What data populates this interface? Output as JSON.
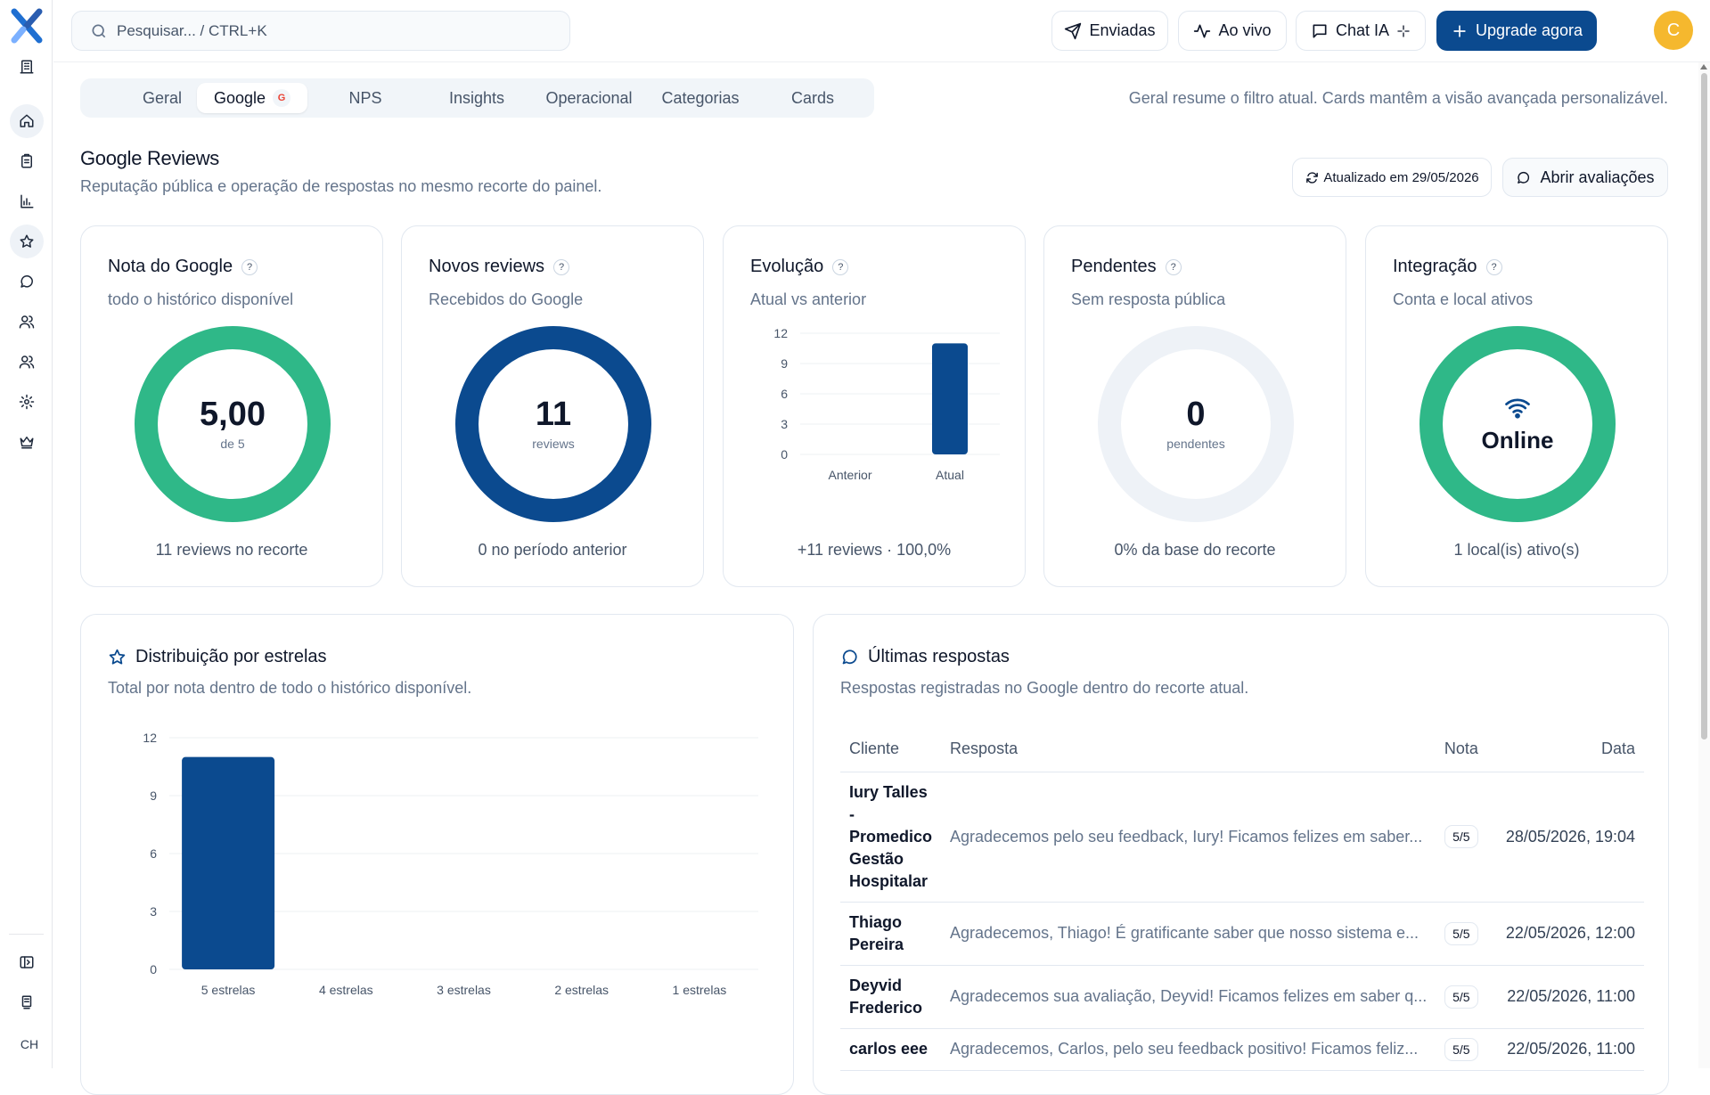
{
  "header": {
    "search_placeholder": "Pesquisar... / CTRL+K",
    "buttons": {
      "sent": "Enviadas",
      "live": "Ao vivo",
      "chat": "Chat IA",
      "upgrade": "Upgrade agora"
    },
    "avatar_initial": "C"
  },
  "sidebar": {
    "avatar_initials": "CH"
  },
  "tabs": {
    "items": [
      "Geral",
      "Google",
      "NPS",
      "Insights",
      "Operacional",
      "Categorias",
      "Cards"
    ],
    "active": "Google",
    "google_badge": "G",
    "hint": "Geral resume o filtro atual. Cards mantêm a visão avançada personalizável."
  },
  "section": {
    "title": "Google Reviews",
    "subtitle": "Reputação pública e operação de respostas no mesmo recorte do painel.",
    "updated_label": "Atualizado em 29/05/2026",
    "open_label": "Abrir avaliações"
  },
  "kpis": {
    "rating": {
      "title": "Nota do Google",
      "help": "?",
      "subtitle": "todo o histórico disponível",
      "value": "5,00",
      "unit": "de 5",
      "fill": 1.0,
      "footer": "11 reviews no recorte",
      "color": "#2fb888"
    },
    "new_reviews": {
      "title": "Novos reviews",
      "help": "?",
      "subtitle": "Recebidos do Google",
      "value": "11",
      "unit": "reviews",
      "fill": 1.0,
      "footer": "0 no período anterior",
      "color": "#0b4a8f"
    },
    "evolution": {
      "title": "Evolução",
      "help": "?",
      "subtitle": "Atual vs anterior",
      "footer": "+11 reviews · 100,0%"
    },
    "pending": {
      "title": "Pendentes",
      "help": "?",
      "subtitle": "Sem resposta pública",
      "value": "0",
      "unit": "pendentes",
      "fill": 0.0,
      "footer": "0% da base do recorte",
      "color": "#eef2f7"
    },
    "integration": {
      "title": "Integração",
      "help": "?",
      "subtitle": "Conta e local ativos",
      "value": "Online",
      "fill": 1.0,
      "footer": "1 local(is) ativo(s)",
      "color": "#2fb888"
    }
  },
  "distribution": {
    "title": "Distribuição por estrelas",
    "subtitle": "Total por nota dentro de todo o histórico disponível."
  },
  "latest": {
    "title": "Últimas respostas",
    "subtitle": "Respostas registradas no Google dentro do recorte atual.",
    "columns": {
      "client": "Cliente",
      "response": "Resposta",
      "rating": "Nota",
      "date": "Data"
    },
    "rows": [
      {
        "client": "Iury Talles - Promedico Gestão Hospitalar",
        "response": "Agradecemos pelo seu feedback, Iury! Ficamos felizes em saber...",
        "rating": "5/5",
        "date": "28/05/2026, 19:04"
      },
      {
        "client": "Thiago Pereira",
        "response": "Agradecemos, Thiago! É gratificante saber que nosso sistema e...",
        "rating": "5/5",
        "date": "22/05/2026, 12:00"
      },
      {
        "client": "Deyvid Frederico",
        "response": "Agradecemos sua avaliação, Deyvid! Ficamos felizes em saber q...",
        "rating": "5/5",
        "date": "22/05/2026, 11:00"
      },
      {
        "client": "carlos eee",
        "response": "Agradecemos, Carlos, pelo seu feedback positivo! Ficamos feliz...",
        "rating": "5/5",
        "date": "22/05/2026, 11:00"
      }
    ]
  },
  "chart_data": [
    {
      "type": "bar",
      "categories": [
        "Anterior",
        "Atual"
      ],
      "values": [
        0,
        11
      ],
      "yticks": [
        "0",
        "3",
        "6",
        "9",
        "12"
      ],
      "ylim": [
        0,
        12
      ],
      "grid": true,
      "color": "#0b4a8f"
    },
    {
      "type": "bar",
      "categories": [
        "5 estrelas",
        "4 estrelas",
        "3 estrelas",
        "2 estrelas",
        "1 estrelas"
      ],
      "values": [
        11,
        0,
        0,
        0,
        0
      ],
      "yticks": [
        "0",
        "3",
        "6",
        "9",
        "12"
      ],
      "ylim": [
        0,
        12
      ],
      "grid": true,
      "color": "#0b4a8f"
    }
  ]
}
